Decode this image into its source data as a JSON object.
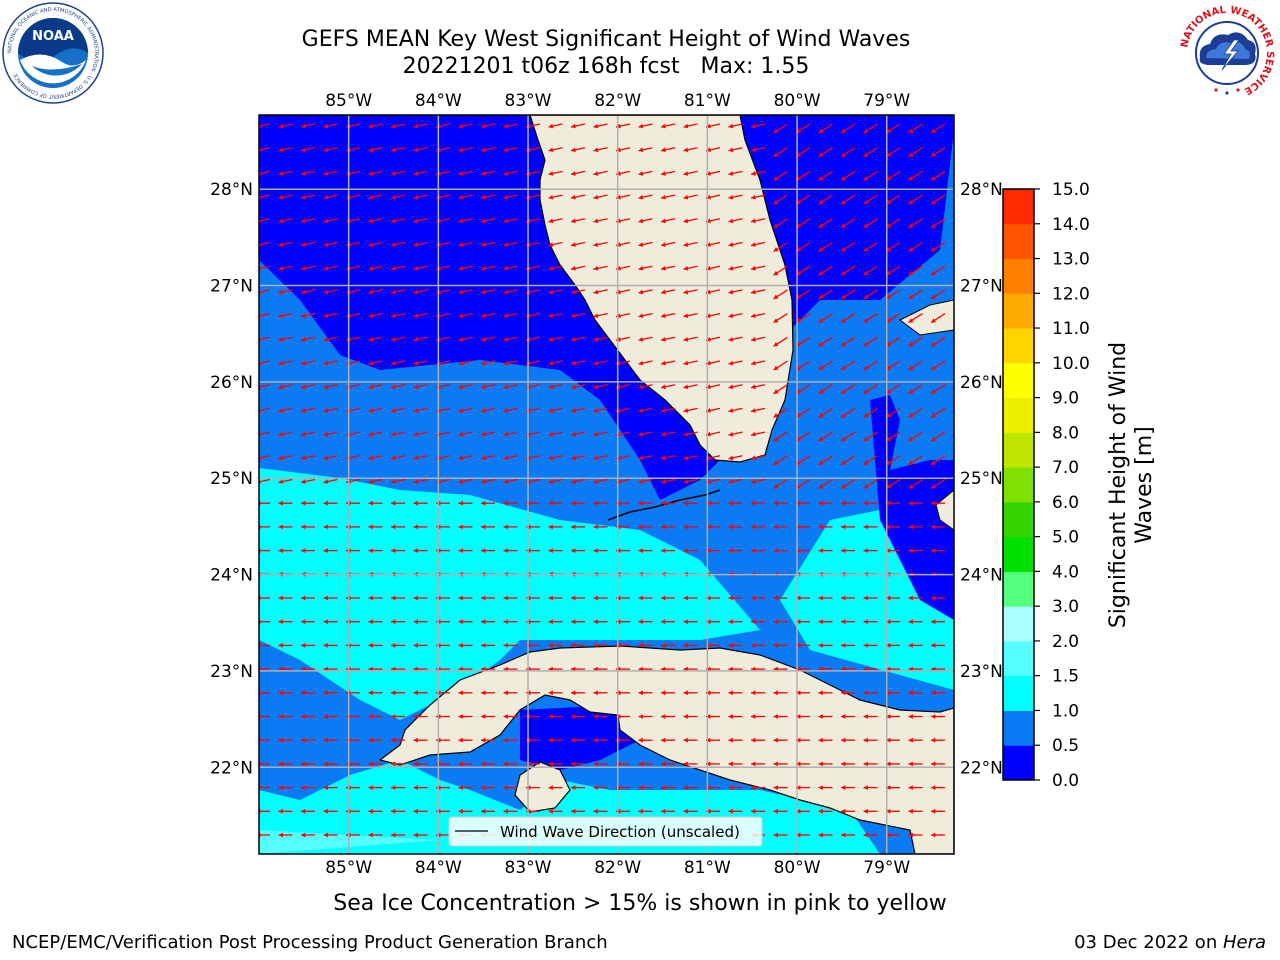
{
  "title": {
    "line1": "GEFS MEAN Key West Significant Height of Wind Waves",
    "line2": "20221201 t06z 168h fcst   Max: 1.55"
  },
  "map": {
    "lon_ticks": [
      "85°W",
      "84°W",
      "83°W",
      "82°W",
      "81°W",
      "80°W",
      "79°W"
    ],
    "lat_ticks": [
      "28°N",
      "27°N",
      "26°N",
      "25°N",
      "24°N",
      "23°N",
      "22°N"
    ],
    "lon_values": [
      -85,
      -84,
      -83,
      -82,
      -81,
      -80,
      -79
    ],
    "lat_values": [
      28,
      27,
      26,
      25,
      24,
      23,
      22
    ],
    "lon_range": [
      -86,
      -78.25
    ],
    "lat_range": [
      21.1,
      28.77
    ],
    "legend_label": "Wind Wave Direction (unscaled)",
    "arrow_color": "#ff0000",
    "land_color": "#efecdc",
    "coast_color": "#000000"
  },
  "colorbar": {
    "label_line1": "Significant Height of Wind",
    "label_line2": "Waves [m]",
    "ticks": [
      "15.0",
      "14.0",
      "13.0",
      "12.0",
      "11.0",
      "10.0",
      "9.0",
      "8.0",
      "7.0",
      "6.0",
      "5.0",
      "4.0",
      "3.0",
      "2.0",
      "1.5",
      "1.0",
      "0.5",
      "0.0"
    ],
    "levels": [
      0,
      0.5,
      1.0,
      1.5,
      2.0,
      3.0,
      4.0,
      5.0,
      6.0,
      7.0,
      8.0,
      9.0,
      10.0,
      11.0,
      12.0,
      13.0,
      14.0,
      15.0
    ],
    "colors": [
      "#0000ff",
      "#0a7af5",
      "#00ffff",
      "#55ffff",
      "#aaffff",
      "#55ff80",
      "#00e000",
      "#33d400",
      "#80e000",
      "#bfe600",
      "#ecf000",
      "#ffff00",
      "#ffd500",
      "#ffaa00",
      "#ff7f00",
      "#ff5500",
      "#ff2a00",
      "#ff0000"
    ],
    "max_value": 1.55
  },
  "note": "Sea Ice Concentration > 15% is shown in pink to yellow",
  "footer": {
    "left": "NCEP/EMC/Verification Post Processing Product Generation Branch",
    "right_date": "03 Dec 2022 on ",
    "right_host": "Hera"
  },
  "logos": {
    "noaa_text": "NOAA",
    "noaa_ring": "NATIONAL OCEANIC AND ATMOSPHERIC ADMINISTRATION · U.S. DEPARTMENT OF COMMERCE",
    "nws_ring": "NATIONAL WEATHER SERVICE"
  }
}
